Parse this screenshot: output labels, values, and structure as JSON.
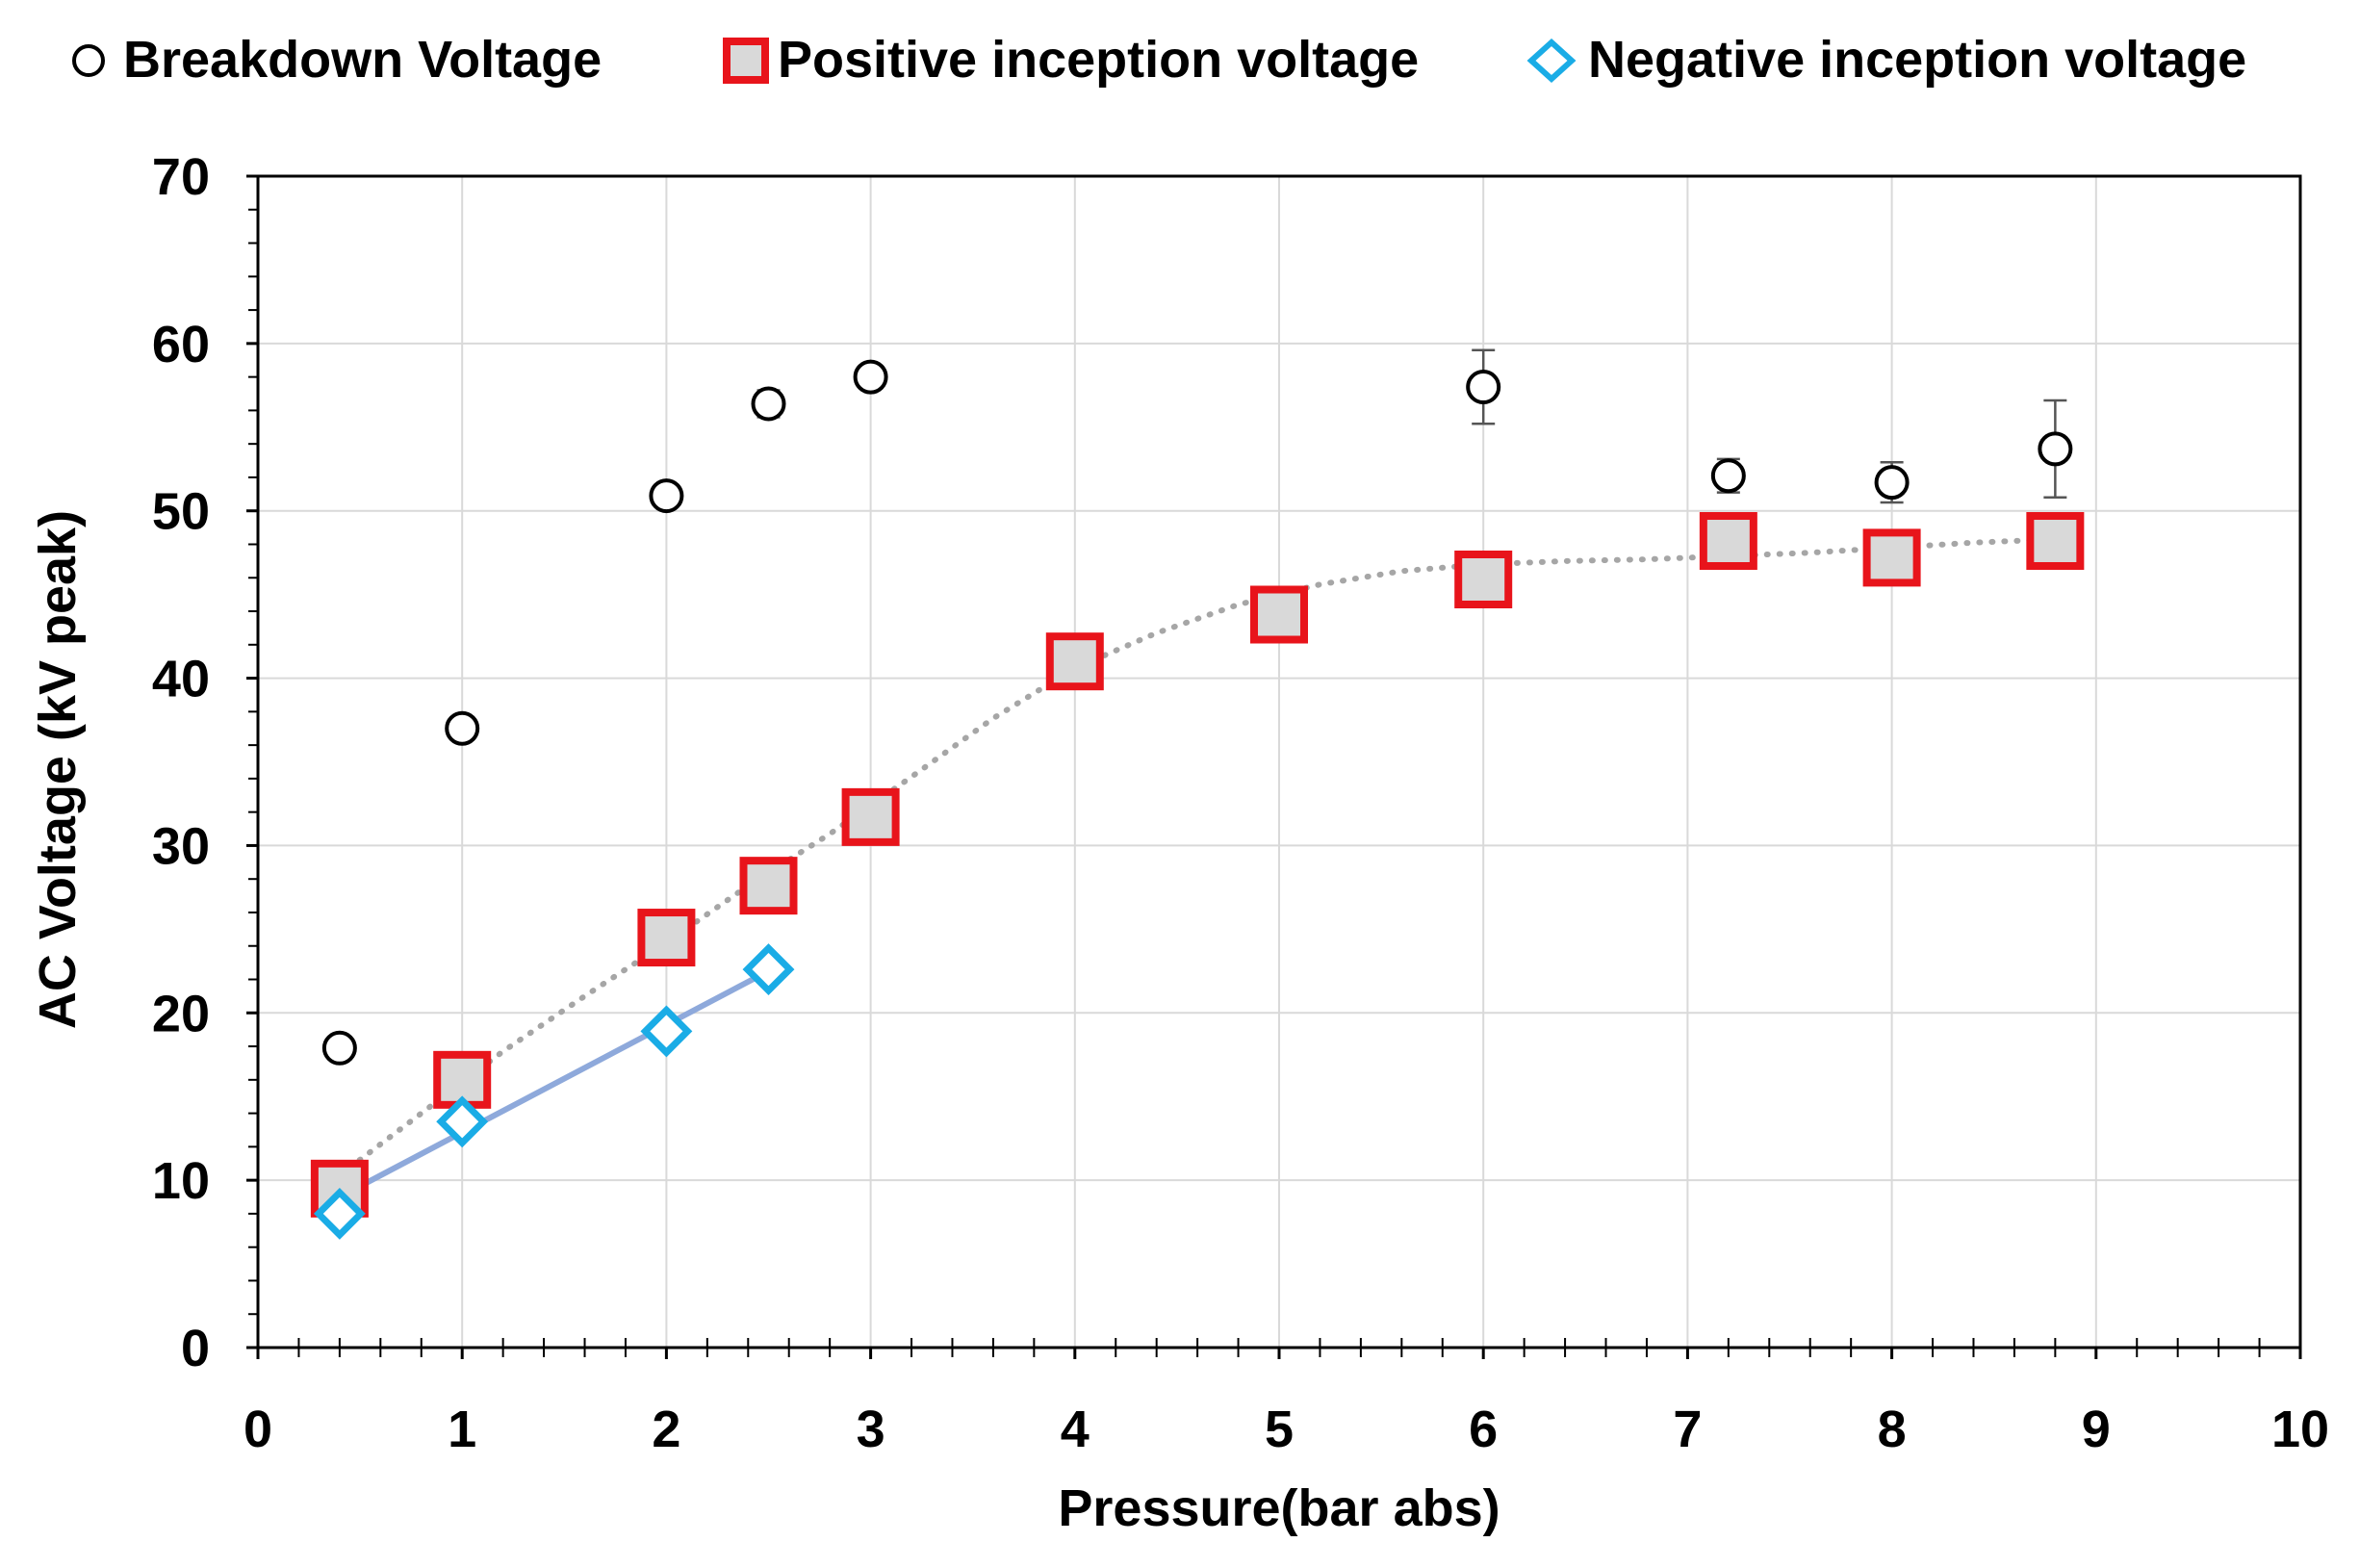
{
  "chart_data": {
    "type": "scatter",
    "title": "",
    "xlabel": "Pressure(bar abs)",
    "ylabel": "AC Voltage (kV peak)",
    "xlim": [
      0,
      10
    ],
    "ylim": [
      0,
      70
    ],
    "x_ticks": [
      0,
      1,
      2,
      3,
      4,
      5,
      6,
      7,
      8,
      9,
      10
    ],
    "y_ticks": [
      0,
      10,
      20,
      30,
      40,
      50,
      60,
      70
    ],
    "x_minor_step": 0.2,
    "y_minor_step": 2,
    "grid": true,
    "legend_position": "top",
    "series": [
      {
        "name": "Breakdown Voltage",
        "marker": "circle",
        "color": "#000000",
        "fill": "#ffffff",
        "x": [
          0.4,
          1,
          2,
          2.5,
          3,
          6,
          7.2,
          8,
          8.8
        ],
        "y": [
          17.9,
          37.0,
          50.9,
          56.4,
          58.0,
          57.4,
          52.1,
          51.7,
          53.7
        ],
        "error": [
          0,
          0,
          0,
          0.8,
          0,
          2.2,
          1.0,
          1.2,
          2.9
        ]
      },
      {
        "name": "Positive inception voltage",
        "marker": "square",
        "color": "#e8141b",
        "fill": "#d9d9d9",
        "x": [
          0.4,
          1,
          2,
          2.5,
          3,
          4,
          5,
          6,
          7.2,
          8,
          8.8
        ],
        "y": [
          9.5,
          16.0,
          24.5,
          27.6,
          31.7,
          41.0,
          43.8,
          45.9,
          48.2,
          47.2,
          48.2
        ],
        "trendline": {
          "style": "dotted",
          "color": "#a6a6a6",
          "x": [
            0.4,
            0.8,
            1.2,
            1.6,
            2.0,
            2.4,
            2.8,
            3.2,
            3.6,
            4.0,
            4.4,
            4.8,
            5.2,
            5.6,
            6.0,
            6.4,
            6.8,
            7.2,
            7.6,
            8.0,
            8.4,
            8.8
          ],
          "y": [
            10.3,
            14.0,
            17.7,
            21.0,
            24.2,
            27.6,
            30.7,
            34.1,
            37.6,
            40.6,
            42.7,
            44.4,
            45.6,
            46.4,
            46.8,
            47.0,
            47.1,
            47.3,
            47.5,
            47.8,
            48.1,
            48.3
          ]
        }
      },
      {
        "name": "Negative inception voltage",
        "marker": "diamond",
        "color": "#1aace6",
        "fill": "#ffffff",
        "x": [
          0.4,
          1,
          2,
          2.5
        ],
        "y": [
          8.0,
          13.5,
          18.9,
          22.6
        ],
        "trendline": {
          "style": "solid",
          "color": "#8ea9db",
          "x": [
            0.4,
            2.5
          ],
          "y": [
            9.0,
            22.5
          ]
        }
      }
    ]
  }
}
